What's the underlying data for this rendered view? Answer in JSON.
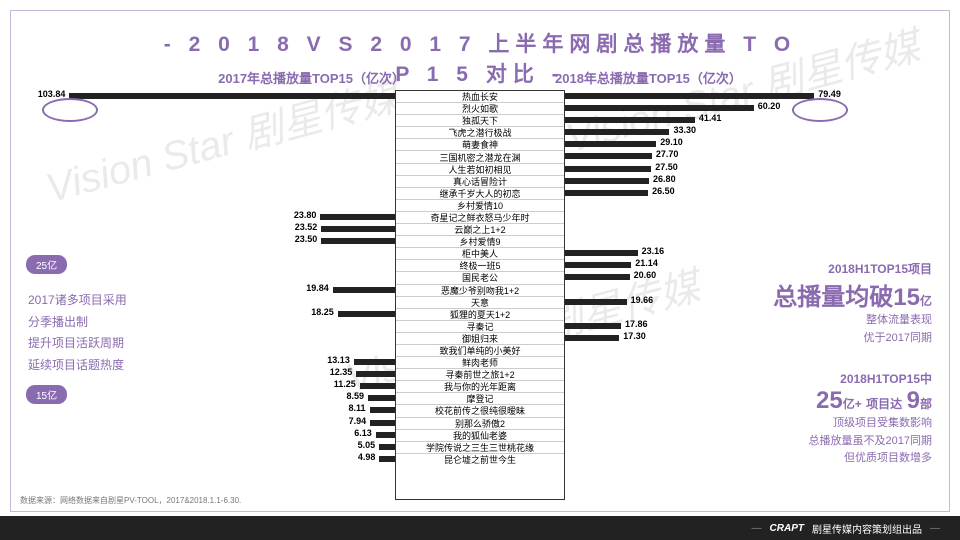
{
  "title": "- 2 0 1 8 V S 2 0 1 7 上半年网剧总播放量 T O P 1 5 对比 -",
  "sub2017": "2017年总播放量TOP15（亿次）",
  "sub2018": "2018年总播放量TOP15（亿次）",
  "shows": [
    "热血长安",
    "烈火如歌",
    "独孤天下",
    "飞虎之潜行极战",
    "萌妻食神",
    "三国机密之潜龙在渊",
    "人生若如初相见",
    "真心话冒险计",
    "继承千岁大人的初恋",
    "乡村爱情10",
    "奇星记之鲜衣怒马少年时",
    "云巅之上1+2",
    "乡村爱情9",
    "柜中美人",
    "终极一班5",
    "国民老公",
    "恶魔少爷别吻我1+2",
    "天意",
    "狐狸的夏天1+2",
    "寻秦记",
    "御姐归来",
    "致我们单纯的小美好",
    "鲜肉老师",
    "寻秦前世之旅1+2",
    "我与你的光年距离",
    "摩登记",
    "校花前传之很纯很暧昧",
    "别那么骄傲2",
    "我的狐仙老婆",
    "学院传说之三生三世桃花缘",
    "昆仑墟之前世今生"
  ],
  "left": [
    {
      "i": 0,
      "v": 103.84,
      "text": "103.84"
    },
    {
      "i": 10,
      "v": 23.8,
      "text": "23.80"
    },
    {
      "i": 11,
      "v": 23.52,
      "text": "23.52"
    },
    {
      "i": 12,
      "v": 23.5,
      "text": "23.50"
    },
    {
      "i": 16,
      "v": 19.84,
      "text": "19.84"
    },
    {
      "i": 18,
      "v": 18.25,
      "text": "18.25"
    },
    {
      "i": 22,
      "v": 13.13,
      "text": "13.13"
    },
    {
      "i": 23,
      "v": 12.35,
      "text": "12.35"
    },
    {
      "i": 24,
      "v": 11.25,
      "text": "11.25"
    },
    {
      "i": 25,
      "v": 8.59,
      "text": "8.59"
    },
    {
      "i": 26,
      "v": 8.11,
      "text": "8.11"
    },
    {
      "i": 27,
      "v": 7.94,
      "text": "7.94"
    },
    {
      "i": 28,
      "v": 6.13,
      "text": "6.13"
    },
    {
      "i": 29,
      "v": 5.05,
      "text": "5.05"
    },
    {
      "i": 30,
      "v": 4.98,
      "text": "4.98"
    }
  ],
  "right": [
    {
      "i": 0,
      "v": 79.49,
      "text": "79.49"
    },
    {
      "i": 1,
      "v": 60.2,
      "text": "60.20"
    },
    {
      "i": 2,
      "v": 41.41,
      "text": "41.41"
    },
    {
      "i": 3,
      "v": 33.3,
      "text": "33.30"
    },
    {
      "i": 4,
      "v": 29.1,
      "text": "29.10"
    },
    {
      "i": 5,
      "v": 27.7,
      "text": "27.70"
    },
    {
      "i": 6,
      "v": 27.5,
      "text": "27.50"
    },
    {
      "i": 7,
      "v": 26.8,
      "text": "26.80"
    },
    {
      "i": 8,
      "v": 26.5,
      "text": "26.50"
    },
    {
      "i": 13,
      "v": 23.16,
      "text": "23.16"
    },
    {
      "i": 14,
      "v": 21.14,
      "text": "21.14"
    },
    {
      "i": 15,
      "v": 20.6,
      "text": "20.60"
    },
    {
      "i": 17,
      "v": 19.66,
      "text": "19.66"
    },
    {
      "i": 19,
      "v": 17.86,
      "text": "17.86"
    },
    {
      "i": 20,
      "v": 17.3,
      "text": "17.30"
    }
  ],
  "scale_max": 110,
  "tag25": "25亿",
  "tag15": "15亿",
  "noteLeft": [
    "2017诸多项目采用",
    "分季播出制",
    "提升项目活跃周期",
    "延续项目话题热度"
  ],
  "noteR1_a": "2018H1TOP15项目",
  "noteR1_big": "总播量均破15",
  "noteR1_unit": "亿",
  "noteR1_c": "整体流量表现",
  "noteR1_d": "优于2017同期",
  "noteR2_a": "2018H1TOP15中",
  "noteR2_big1": "25",
  "noteR2_big1u": "亿+",
  "noteR2_big2": "项目达",
  "noteR2_big3": "9",
  "noteR2_big3u": "部",
  "noteR2_c": "顶级项目受集数影响",
  "noteR2_d": "总播放量虽不及2017同期",
  "noteR2_e": "但优质项目数增多",
  "source": "数据来源：网络数据来自剧星PV-TOOL，2017&2018.1.1-6.30.",
  "footer_brand": "CRAPT",
  "footer_text": "剧星传媒内容策划组出品",
  "watermark": "Vision Star 剧星传媒"
}
